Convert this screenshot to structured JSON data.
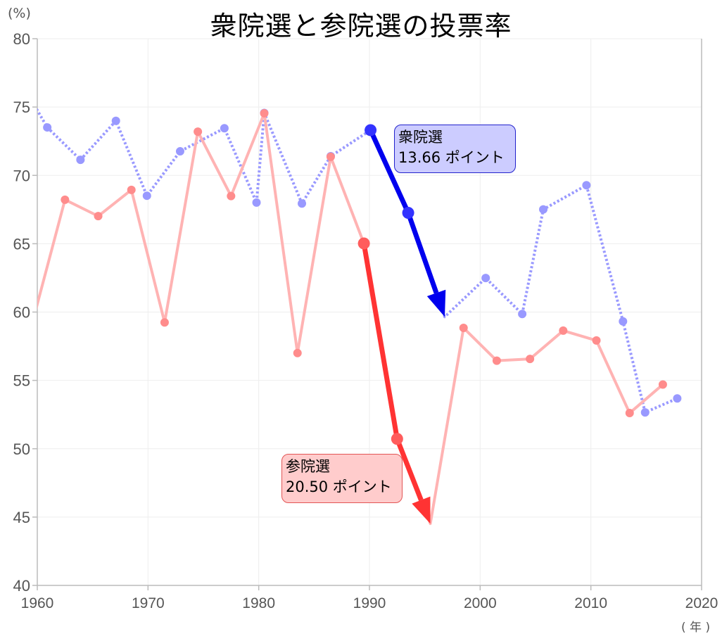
{
  "chart": {
    "title": "衆院選と参院選の投票率",
    "y_unit": "(%)",
    "x_unit": "( 年 )",
    "annotations": {
      "shuin": {
        "line1": "衆院選",
        "line2": "13.66 ポイント"
      },
      "sanin": {
        "line1": "参院選",
        "line2": "20.50 ポイント"
      }
    }
  },
  "colors": {
    "shuin_line": "#9999ff",
    "sanin_line": "#ffb3b3",
    "shuin_marker": "#9999ff",
    "sanin_marker": "#ff8c8c",
    "shuin_highlight": "#0000ee",
    "sanin_highlight": "#ff3333",
    "grid": "#eeeeee",
    "axis": "#bbbbbb",
    "tick_label": "#555555"
  },
  "chart_data": {
    "type": "line",
    "title": "衆院選と参院選の投票率",
    "xlabel": "(年)",
    "ylabel": "(%)",
    "xlim": [
      1960,
      2020
    ],
    "ylim": [
      40,
      80
    ],
    "x_ticks": [
      1960,
      1970,
      1980,
      1990,
      2000,
      2010,
      2020
    ],
    "y_ticks": [
      40,
      45,
      50,
      55,
      60,
      65,
      70,
      75,
      80
    ],
    "grid": true,
    "legend": "none",
    "series": [
      {
        "name": "衆院選",
        "style": "dotted",
        "x": [
          1958.4,
          1960.9,
          1963.9,
          1967.1,
          1969.9,
          1972.9,
          1976.9,
          1979.8,
          1980.5,
          1983.9,
          1986.5,
          1990.1,
          1993.5,
          1996.8,
          2000.5,
          2003.8,
          2005.7,
          2009.6,
          2012.9,
          2014.9,
          2017.8
        ],
        "values": [
          76.99,
          73.51,
          71.14,
          73.99,
          68.51,
          71.76,
          73.45,
          68.01,
          74.57,
          67.94,
          71.4,
          73.31,
          67.26,
          59.65,
          62.49,
          59.86,
          67.51,
          69.28,
          59.32,
          52.66,
          53.68
        ]
      },
      {
        "name": "参院選",
        "style": "solid",
        "x": [
          1959.4,
          1962.5,
          1965.5,
          1968.5,
          1971.5,
          1974.5,
          1977.5,
          1980.5,
          1983.5,
          1986.5,
          1989.5,
          1992.5,
          1995.5,
          1998.5,
          2001.5,
          2004.5,
          2007.5,
          2010.5,
          2013.5,
          2016.5
        ],
        "values": [
          58.75,
          68.22,
          67.02,
          68.94,
          59.24,
          73.2,
          68.49,
          74.54,
          57.0,
          71.36,
          65.02,
          50.72,
          44.52,
          58.84,
          56.44,
          56.57,
          58.64,
          57.92,
          52.61,
          54.7
        ]
      }
    ],
    "highlights": [
      {
        "series": "衆院選",
        "from_index": 11,
        "to_index": 13,
        "label": "衆院選 13.66 ポイント",
        "drop": 13.66
      },
      {
        "series": "参院選",
        "from_index": 10,
        "to_index": 12,
        "label": "参院選 20.50 ポイント",
        "drop": 20.5
      }
    ]
  }
}
